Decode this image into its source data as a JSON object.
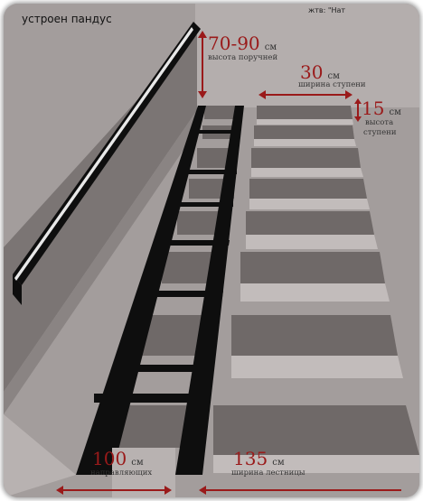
{
  "header": {
    "title": "устроен пандус",
    "corner": "жтв: \"Нат"
  },
  "labels": {
    "handrail_size": "70-90",
    "handrail_unit": "см",
    "handrail_caption": "высота поручней",
    "step_width_size": "30",
    "step_width_unit": "см",
    "step_width_caption": "ширина ступени",
    "step_height_size": "15",
    "step_height_unit": "см",
    "step_height_caption_1": "высота",
    "step_height_caption_2": "ступени",
    "ramp_size": "100",
    "ramp_unit": "см",
    "ramp_caption": "направляющих",
    "stair_width_size": "135",
    "stair_width_unit": "см",
    "stair_width_caption": "ширина лестницы"
  },
  "colors": {
    "background": "#a39d9c",
    "wall": "#7b7574",
    "step_dark": "#6f6968",
    "step_light": "#c2bcbb",
    "rail": "#0e0e0e",
    "accent_red": "#9a1a1a"
  }
}
